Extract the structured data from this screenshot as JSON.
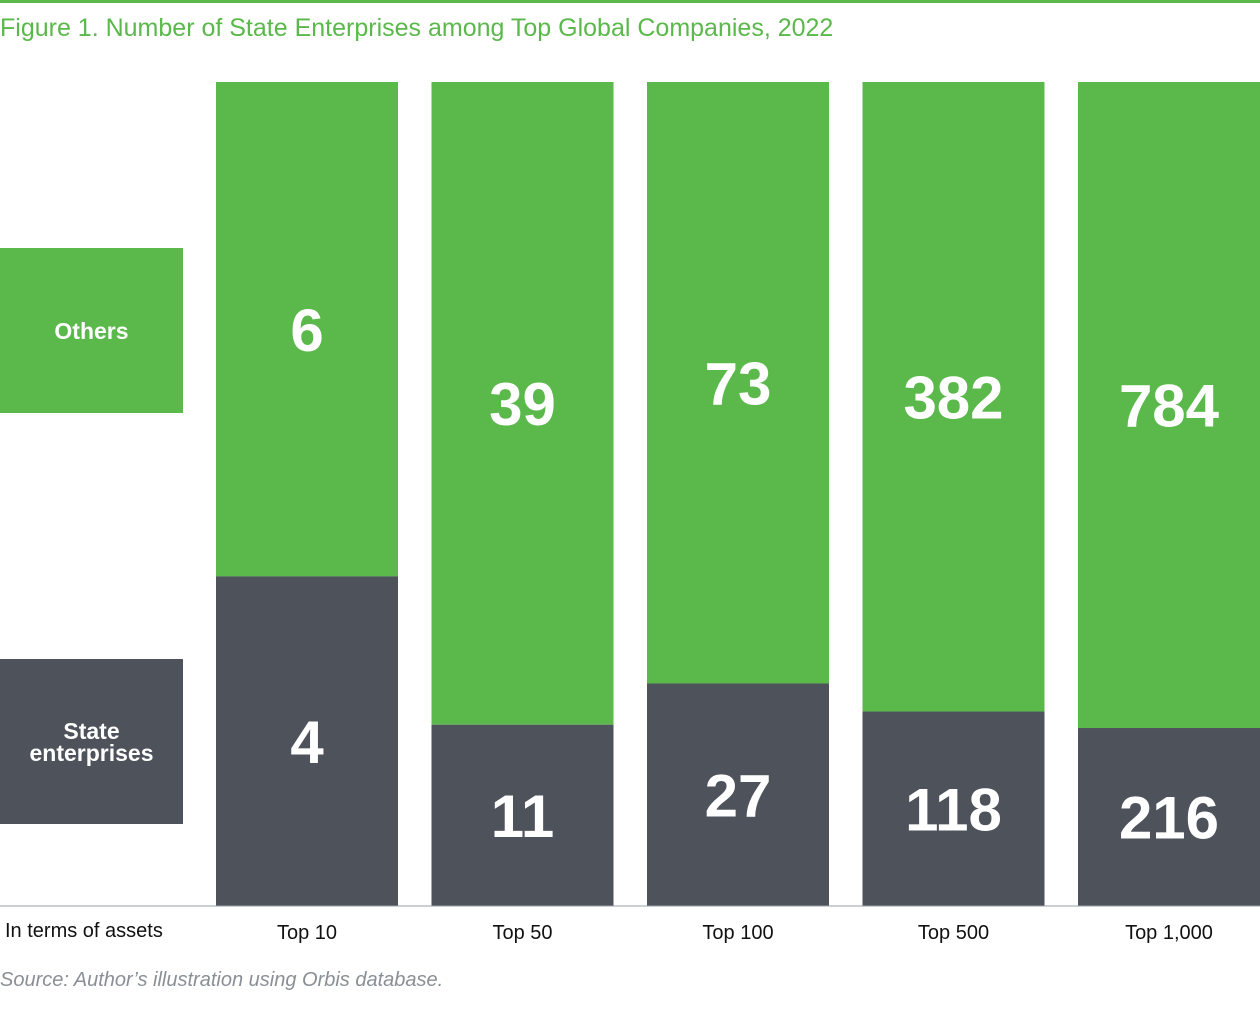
{
  "title": "Figure 1. Number of State Enterprises among Top Global Companies, 2022",
  "source": "Source: Author’s illustration using Orbis database.",
  "axis_caption": "In terms of assets",
  "colors": {
    "others": "#5ab94a",
    "state": "#4d525b",
    "text_on_bar": "#ffffff"
  },
  "legend": {
    "others": "Others",
    "state": "State enterprises"
  },
  "chart_data": {
    "type": "bar",
    "stacked": true,
    "normalized_percent": true,
    "title": "Figure 1. Number of State Enterprises among Top Global Companies, 2022",
    "xlabel": "In terms of assets",
    "categories": [
      "Top 10",
      "Top 50",
      "Top 100",
      "Top 500",
      "Top 1,000"
    ],
    "series": [
      {
        "name": "State enterprises",
        "values": [
          4,
          11,
          27,
          118,
          216
        ]
      },
      {
        "name": "Others",
        "values": [
          6,
          39,
          73,
          382,
          784
        ]
      }
    ]
  }
}
